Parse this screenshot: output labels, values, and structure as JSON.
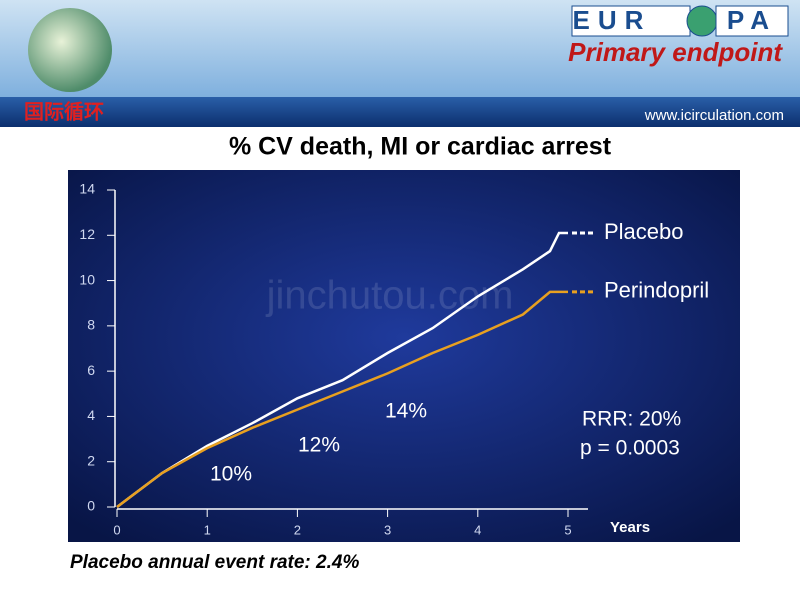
{
  "header": {
    "logo_left": "EUR",
    "logo_right": "PA",
    "slide_title": "Primary endpoint",
    "brand": "国际循环",
    "url": "www.icirculation.com"
  },
  "watermark": "jinchutou.com",
  "footer": "Placebo annual event rate: 2.4%",
  "chart_data": {
    "type": "line",
    "title": "% CV death, MI or cardiac arrest",
    "x_label": "Years",
    "x": [
      0,
      0.5,
      1,
      1.5,
      2,
      2.5,
      3,
      3.5,
      4,
      4.5,
      4.8,
      4.9,
      5
    ],
    "series": [
      {
        "name": "Placebo",
        "color": "#ffffff",
        "values": [
          0,
          1.5,
          2.7,
          3.7,
          4.8,
          5.6,
          6.8,
          7.9,
          9.3,
          10.5,
          11.3,
          12.1,
          12.1
        ]
      },
      {
        "name": "Perindopril",
        "color": "#e8a020",
        "values": [
          0,
          1.5,
          2.6,
          3.5,
          4.3,
          5.1,
          5.9,
          6.8,
          7.6,
          8.5,
          9.5,
          9.5,
          9.5
        ]
      }
    ],
    "xlim": [
      0,
      5
    ],
    "xticks": [
      0,
      1,
      2,
      3,
      4,
      5
    ],
    "ylim": [
      0,
      14
    ],
    "yticks": [
      0,
      2,
      4,
      6,
      8,
      10,
      12,
      14
    ],
    "annotations": [
      "10%",
      "12%",
      "14%",
      "RRR: 20%",
      "p = 0.0003"
    ]
  }
}
